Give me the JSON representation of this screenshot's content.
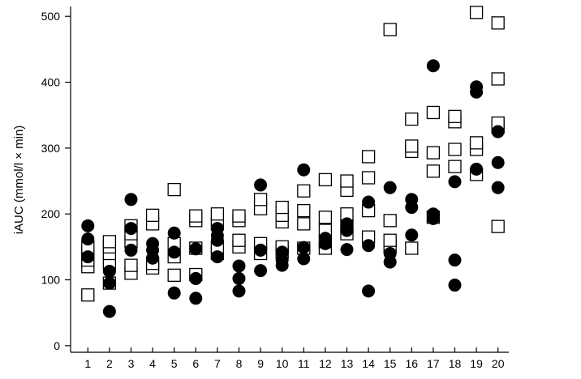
{
  "chart_data": {
    "type": "scatter",
    "title": "",
    "xlabel": "",
    "ylabel": "iAUC (mmol/l × min)",
    "x_ticks": [
      "1",
      "2",
      "3",
      "4",
      "5",
      "6",
      "7",
      "8",
      "9",
      "10",
      "11",
      "12",
      "13",
      "14",
      "15",
      "16",
      "17",
      "18",
      "19",
      "20"
    ],
    "y_ticks": [
      "0",
      "100",
      "200",
      "300",
      "400",
      "500"
    ],
    "xlim": [
      0.2,
      20.5
    ],
    "ylim": [
      -10,
      515
    ],
    "grid": false,
    "legend": "none",
    "series": [
      {
        "marker": "open-square",
        "color": "#000000",
        "points": [
          [
            1,
            77
          ],
          [
            1,
            120
          ],
          [
            1,
            130
          ],
          [
            1,
            140
          ],
          [
            1,
            150
          ],
          [
            2,
            95
          ],
          [
            2,
            125
          ],
          [
            2,
            140
          ],
          [
            2,
            150
          ],
          [
            2,
            158
          ],
          [
            3,
            110
          ],
          [
            3,
            122
          ],
          [
            3,
            158
          ],
          [
            3,
            170
          ],
          [
            3,
            182
          ],
          [
            4,
            118
          ],
          [
            4,
            125
          ],
          [
            4,
            185
          ],
          [
            4,
            198
          ],
          [
            5,
            107
          ],
          [
            5,
            135
          ],
          [
            5,
            155
          ],
          [
            5,
            237
          ],
          [
            6,
            108
          ],
          [
            6,
            148
          ],
          [
            6,
            190
          ],
          [
            6,
            197
          ],
          [
            7,
            140
          ],
          [
            7,
            150
          ],
          [
            7,
            185
          ],
          [
            7,
            200
          ],
          [
            8,
            150
          ],
          [
            8,
            160
          ],
          [
            8,
            190
          ],
          [
            8,
            197
          ],
          [
            9,
            140
          ],
          [
            9,
            155
          ],
          [
            9,
            208
          ],
          [
            9,
            222
          ],
          [
            10,
            142
          ],
          [
            10,
            150
          ],
          [
            10,
            188
          ],
          [
            10,
            198
          ],
          [
            10,
            210
          ],
          [
            11,
            148
          ],
          [
            11,
            185
          ],
          [
            11,
            205
          ],
          [
            11,
            235
          ],
          [
            12,
            148
          ],
          [
            12,
            158
          ],
          [
            12,
            175
          ],
          [
            12,
            195
          ],
          [
            12,
            252
          ],
          [
            13,
            170
          ],
          [
            13,
            182
          ],
          [
            13,
            200
          ],
          [
            13,
            236
          ],
          [
            13,
            250
          ],
          [
            14,
            165
          ],
          [
            14,
            205
          ],
          [
            14,
            255
          ],
          [
            14,
            287
          ],
          [
            15,
            150
          ],
          [
            15,
            160
          ],
          [
            15,
            190
          ],
          [
            15,
            480
          ],
          [
            16,
            148
          ],
          [
            16,
            295
          ],
          [
            16,
            303
          ],
          [
            16,
            344
          ],
          [
            17,
            195
          ],
          [
            17,
            265
          ],
          [
            17,
            293
          ],
          [
            17,
            354
          ],
          [
            18,
            272
          ],
          [
            18,
            298
          ],
          [
            18,
            340
          ],
          [
            18,
            348
          ],
          [
            19,
            260
          ],
          [
            19,
            298
          ],
          [
            19,
            308
          ],
          [
            19,
            506
          ],
          [
            20,
            181
          ],
          [
            20,
            332
          ],
          [
            20,
            338
          ],
          [
            20,
            405
          ],
          [
            20,
            490
          ]
        ]
      },
      {
        "marker": "filled-circle",
        "color": "#000000",
        "points": [
          [
            1,
            135
          ],
          [
            1,
            162
          ],
          [
            1,
            182
          ],
          [
            2,
            52
          ],
          [
            2,
            95
          ],
          [
            2,
            113
          ],
          [
            3,
            145
          ],
          [
            3,
            178
          ],
          [
            3,
            222
          ],
          [
            4,
            133
          ],
          [
            4,
            145
          ],
          [
            4,
            155
          ],
          [
            5,
            80
          ],
          [
            5,
            142
          ],
          [
            5,
            171
          ],
          [
            6,
            72
          ],
          [
            6,
            102
          ],
          [
            6,
            147
          ],
          [
            7,
            135
          ],
          [
            7,
            160
          ],
          [
            7,
            167
          ],
          [
            7,
            178
          ],
          [
            8,
            83
          ],
          [
            8,
            102
          ],
          [
            8,
            121
          ],
          [
            9,
            114
          ],
          [
            9,
            145
          ],
          [
            9,
            244
          ],
          [
            10,
            122
          ],
          [
            10,
            130
          ],
          [
            10,
            142
          ],
          [
            11,
            132
          ],
          [
            11,
            149
          ],
          [
            11,
            267
          ],
          [
            12,
            155
          ],
          [
            12,
            163
          ],
          [
            13,
            146
          ],
          [
            13,
            175
          ],
          [
            13,
            185
          ],
          [
            14,
            83
          ],
          [
            14,
            152
          ],
          [
            14,
            218
          ],
          [
            15,
            127
          ],
          [
            15,
            140
          ],
          [
            15,
            240
          ],
          [
            16,
            168
          ],
          [
            16,
            210
          ],
          [
            16,
            222
          ],
          [
            17,
            193
          ],
          [
            17,
            200
          ],
          [
            17,
            425
          ],
          [
            18,
            92
          ],
          [
            18,
            130
          ],
          [
            18,
            249
          ],
          [
            19,
            268
          ],
          [
            19,
            385
          ],
          [
            19,
            393
          ],
          [
            20,
            240
          ],
          [
            20,
            278
          ],
          [
            20,
            325
          ]
        ]
      }
    ]
  }
}
